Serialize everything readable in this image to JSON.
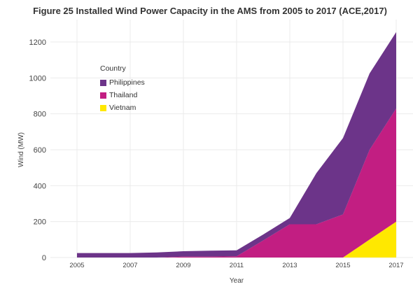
{
  "chart_data": {
    "type": "area",
    "stacked": true,
    "title": "Figure 25 Installed Wind Power Capacity in the AMS from 2005 to 2017 (ACE,2017)",
    "xlabel": "Year",
    "ylabel": "Wind (MW)",
    "x": [
      2005,
      2006,
      2007,
      2008,
      2009,
      2010,
      2011,
      2012,
      2013,
      2014,
      2015,
      2016,
      2017
    ],
    "xticks": [
      "2005",
      "2007",
      "2009",
      "2011",
      "2013",
      "2015",
      "2017"
    ],
    "yticks": [
      "0",
      "200",
      "400",
      "600",
      "800",
      "1000",
      "1200"
    ],
    "ylim": [
      0,
      1300
    ],
    "xlim": [
      2005,
      2017
    ],
    "grid": true,
    "legend_title": "Country",
    "legend_position": "top-left",
    "series": [
      {
        "name": "Vietnam",
        "color": "#FFE800",
        "values": [
          0,
          0,
          0,
          0,
          0,
          0,
          0,
          0,
          0,
          0,
          0,
          100,
          200
        ]
      },
      {
        "name": "Thailand",
        "color": "#C21E82",
        "values": [
          0,
          0,
          0,
          0,
          5,
          5,
          7,
          95,
          185,
          185,
          240,
          500,
          630
        ]
      },
      {
        "name": "Philippines",
        "color": "#6C3489",
        "values": [
          25,
          25,
          25,
          28,
          30,
          33,
          33,
          33,
          35,
          285,
          425,
          425,
          425
        ]
      }
    ],
    "legend_order": [
      "Philippines",
      "Thailand",
      "Vietnam"
    ]
  }
}
